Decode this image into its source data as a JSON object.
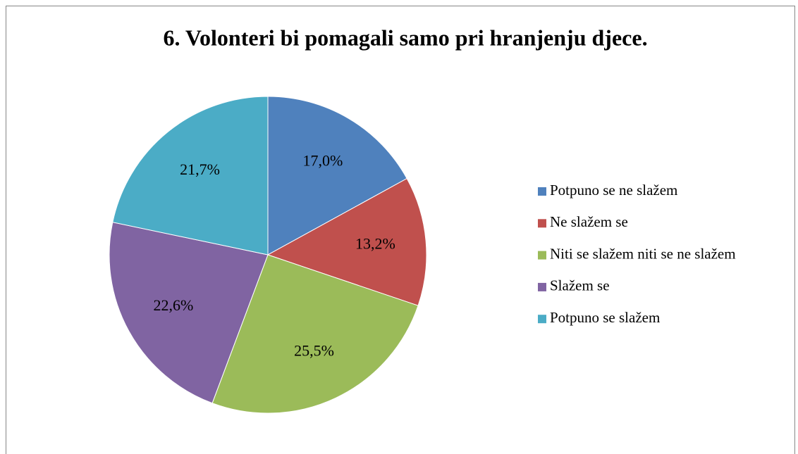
{
  "chart_data": {
    "type": "pie",
    "title": "6. Volonteri bi pomagali samo pri hranjenju djece.",
    "categories": [
      "Potpuno se ne slažem",
      "Ne slažem se",
      "Niti se slažem niti se ne slažem",
      "Slažem se",
      "Potpuno se slažem"
    ],
    "values": [
      17.0,
      13.2,
      25.5,
      22.6,
      21.7
    ],
    "value_labels": [
      "17,0%",
      "13,2%",
      "25,5%",
      "22,6%",
      "21,7%"
    ],
    "colors": [
      "#4f81bd",
      "#c0504d",
      "#9bbb59",
      "#8064a2",
      "#4bacc6"
    ],
    "legend": "right"
  }
}
